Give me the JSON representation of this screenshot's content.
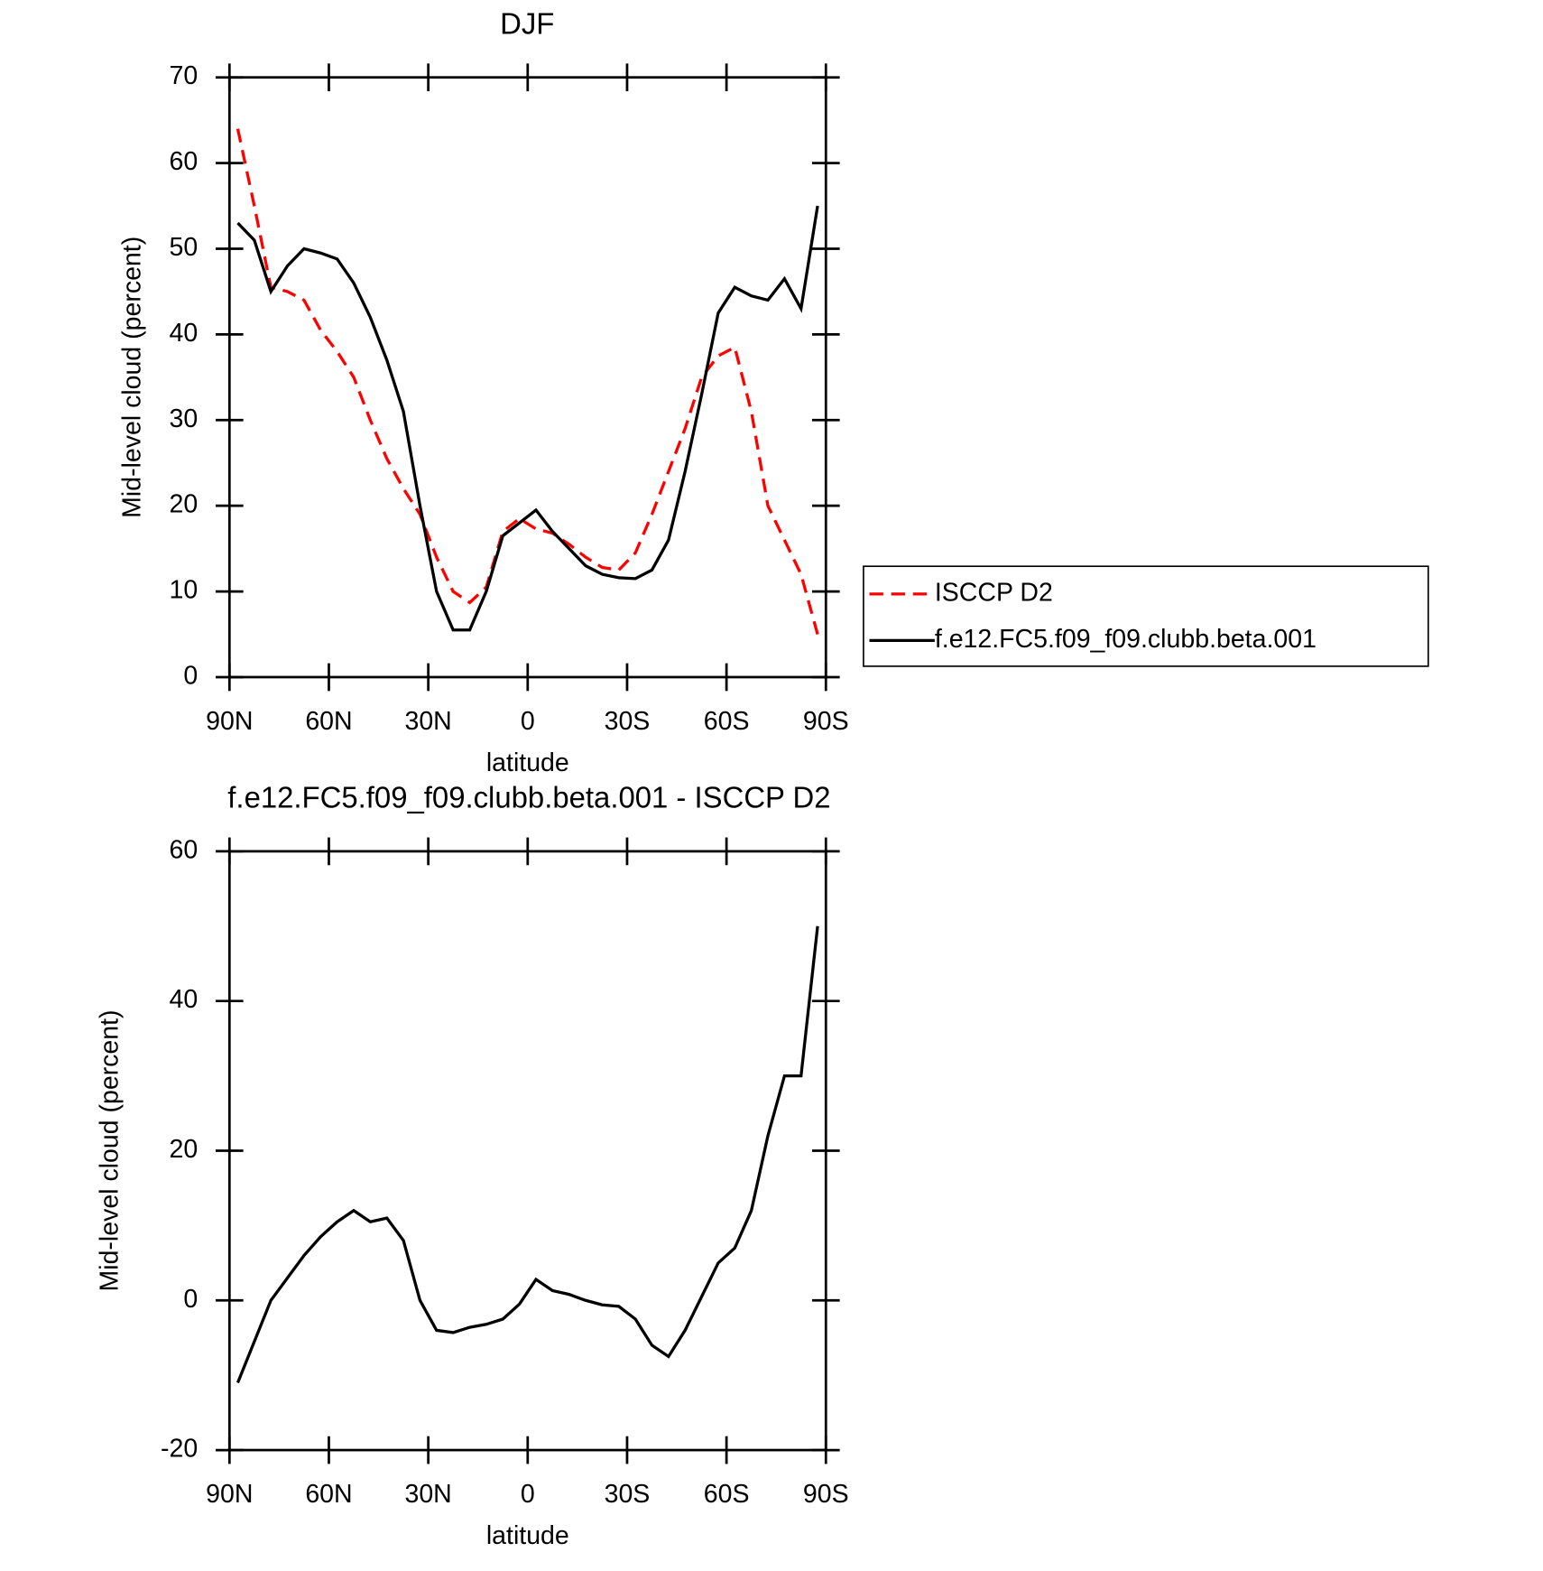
{
  "chart_data": [
    {
      "type": "line",
      "title": "DJF",
      "xlabel": "latitude",
      "ylabel": "Mid-level cloud (percent)",
      "x": [
        87.5,
        82.5,
        77.5,
        72.5,
        67.5,
        62.5,
        57.5,
        52.5,
        47.5,
        42.5,
        37.5,
        32.5,
        27.5,
        22.5,
        17.5,
        12.5,
        7.5,
        2.5,
        -2.5,
        -7.5,
        -12.5,
        -17.5,
        -22.5,
        -27.5,
        -32.5,
        -37.5,
        -42.5,
        -47.5,
        -52.5,
        -57.5,
        -62.5,
        -67.5,
        -72.5,
        -77.5,
        -82.5,
        -87.5
      ],
      "series": [
        {
          "name": "ISCCP D2",
          "color": "#ff0000",
          "linestyle": "dashed",
          "values": [
            64,
            55,
            45.5,
            45,
            44,
            40.5,
            38,
            35,
            30,
            25.5,
            22,
            19,
            14,
            10,
            8.7,
            10.5,
            17,
            18.5,
            17.3,
            16.8,
            15.5,
            14,
            12.8,
            12.5,
            14.5,
            19,
            24,
            29,
            35,
            37.5,
            38.5,
            31,
            20,
            16,
            12,
            5
          ]
        },
        {
          "name": "f.e12.FC5.f09_f09.clubb.beta.001",
          "color": "#000000",
          "linestyle": "solid",
          "values": [
            53,
            51,
            45,
            48,
            50,
            49.5,
            48.8,
            46,
            42,
            37,
            31,
            20,
            10,
            5.5,
            5.5,
            10,
            16.5,
            18,
            19.5,
            17,
            15,
            13,
            12,
            11.6,
            11.5,
            12.5,
            16,
            24,
            33,
            42.5,
            45.5,
            44.5,
            44,
            46.5,
            43,
            55
          ]
        }
      ],
      "xlim": [
        90,
        -90
      ],
      "xticks": [
        {
          "value": 90,
          "label": "90N"
        },
        {
          "value": 60,
          "label": "60N"
        },
        {
          "value": 30,
          "label": "30N"
        },
        0,
        {
          "value": -30,
          "label": "30S"
        },
        {
          "value": -60,
          "label": "60S"
        },
        {
          "value": -90,
          "label": "90S"
        }
      ],
      "ylim": [
        0,
        70
      ],
      "yticks": [
        0,
        10,
        20,
        30,
        40,
        50,
        60,
        70
      ],
      "legend": "right"
    },
    {
      "type": "line",
      "title": "f.e12.FC5.f09_f09.clubb.beta.001 - ISCCP D2",
      "xlabel": "latitude",
      "ylabel": "Mid-level cloud (percent)",
      "x": [
        87.5,
        82.5,
        77.5,
        72.5,
        67.5,
        62.5,
        57.5,
        52.5,
        47.5,
        42.5,
        37.5,
        32.5,
        27.5,
        22.5,
        17.5,
        12.5,
        7.5,
        2.5,
        -2.5,
        -7.5,
        -12.5,
        -17.5,
        -22.5,
        -27.5,
        -32.5,
        -37.5,
        -42.5,
        -47.5,
        -52.5,
        -57.5,
        -62.5,
        -67.5,
        -72.5,
        -77.5,
        -82.5,
        -87.5
      ],
      "series": [
        {
          "color": "#000000",
          "linestyle": "solid",
          "values": [
            -11,
            -5.5,
            0,
            3,
            6,
            8.5,
            10.5,
            12,
            10.5,
            11,
            8,
            0,
            -4,
            -4.3,
            -3.6,
            -3.2,
            -2.5,
            -0.5,
            2.8,
            1.3,
            0.8,
            0,
            -0.6,
            -0.8,
            -2.5,
            -6,
            -7.5,
            -4,
            0.5,
            5,
            7,
            12,
            22,
            30,
            30,
            50
          ]
        }
      ],
      "xlim": [
        90,
        -90
      ],
      "xticks": [
        {
          "value": 90,
          "label": "90N"
        },
        {
          "value": 60,
          "label": "60N"
        },
        {
          "value": 30,
          "label": "30N"
        },
        0,
        {
          "value": -30,
          "label": "30S"
        },
        {
          "value": -60,
          "label": "60S"
        },
        {
          "value": -90,
          "label": "90S"
        }
      ],
      "ylim": [
        -20,
        60
      ],
      "yticks": [
        -20,
        0,
        20,
        40,
        60
      ]
    }
  ]
}
